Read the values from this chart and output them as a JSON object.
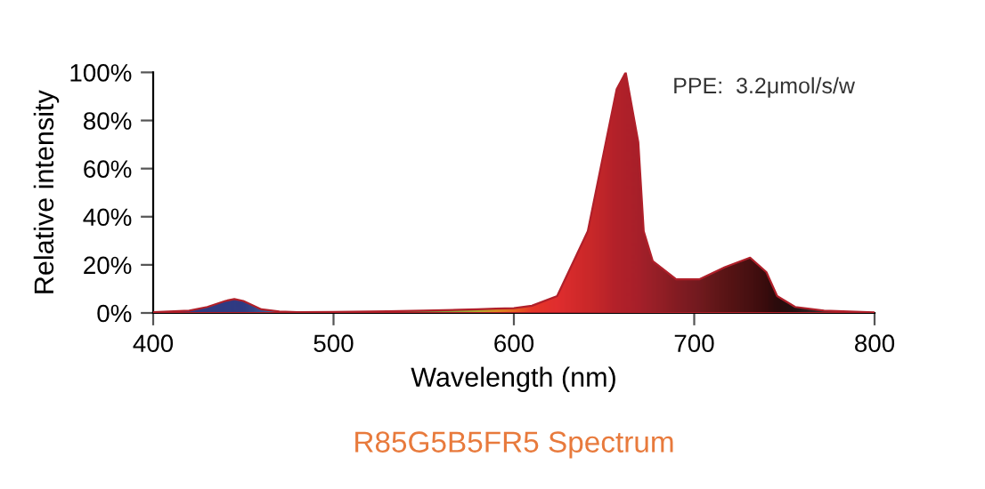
{
  "chart_data": {
    "type": "area",
    "title": "R85G5B5FR5 Spectrum",
    "xlabel": "Wavelength (nm)",
    "ylabel": "Relative intensity",
    "annotations": [
      "PPE:  3.2μmol/s/w"
    ],
    "x": [
      400,
      420,
      430,
      440,
      445,
      450,
      460,
      470,
      480,
      500,
      530,
      550,
      570,
      580,
      590,
      600,
      610,
      624,
      641,
      651,
      657,
      662,
      669,
      672,
      677,
      690,
      703,
      717,
      731,
      740,
      746,
      756,
      772,
      800
    ],
    "series": [
      {
        "values": [
          0.3,
          1,
          2.5,
          5,
          5.8,
          5,
          1.5,
          0.6,
          0.3,
          0.4,
          0.7,
          1,
          1.3,
          1.5,
          1.8,
          2,
          3,
          7,
          34,
          71,
          93,
          100,
          71,
          34,
          21.6,
          14,
          14,
          19,
          23,
          17,
          7,
          2.5,
          1,
          0.2
        ],
        "colors": [
          "#1f3f8f",
          "#1f3f8f",
          "#1f3f8f",
          "#1f3f8f",
          "#1f3f8f",
          "#1f3f8f",
          "#2a5aa0",
          "#3a90c8",
          "#50b8d8",
          "#5ab0a0",
          "#5aa850",
          "#60a840",
          "#90b838",
          "#b0c030",
          "#e0a020",
          "#f07020",
          "#ee3a28",
          "#e83030",
          "#d02a2a",
          "#c0262a",
          "#b4222a",
          "#b0202a",
          "#a8202a",
          "#a01f2a",
          "#982028",
          "#801c22",
          "#6a1a1e",
          "#501414",
          "#3a0e0e",
          "#2a0a0a",
          "#1a0808",
          "#101010",
          "#303030",
          "#505050"
        ]
      }
    ],
    "xlim": [
      400,
      800
    ],
    "xticks": [
      400,
      500,
      600,
      700,
      800
    ],
    "ylim": [
      0,
      100
    ],
    "yticks": [
      {
        "value": 0,
        "label": "0%"
      },
      {
        "value": 20,
        "label": "20%"
      },
      {
        "value": 40,
        "label": "40%"
      },
      {
        "value": 60,
        "label": "60%"
      },
      {
        "value": 80,
        "label": "80%"
      },
      {
        "value": 100,
        "label": "100%"
      }
    ],
    "grid": false
  }
}
